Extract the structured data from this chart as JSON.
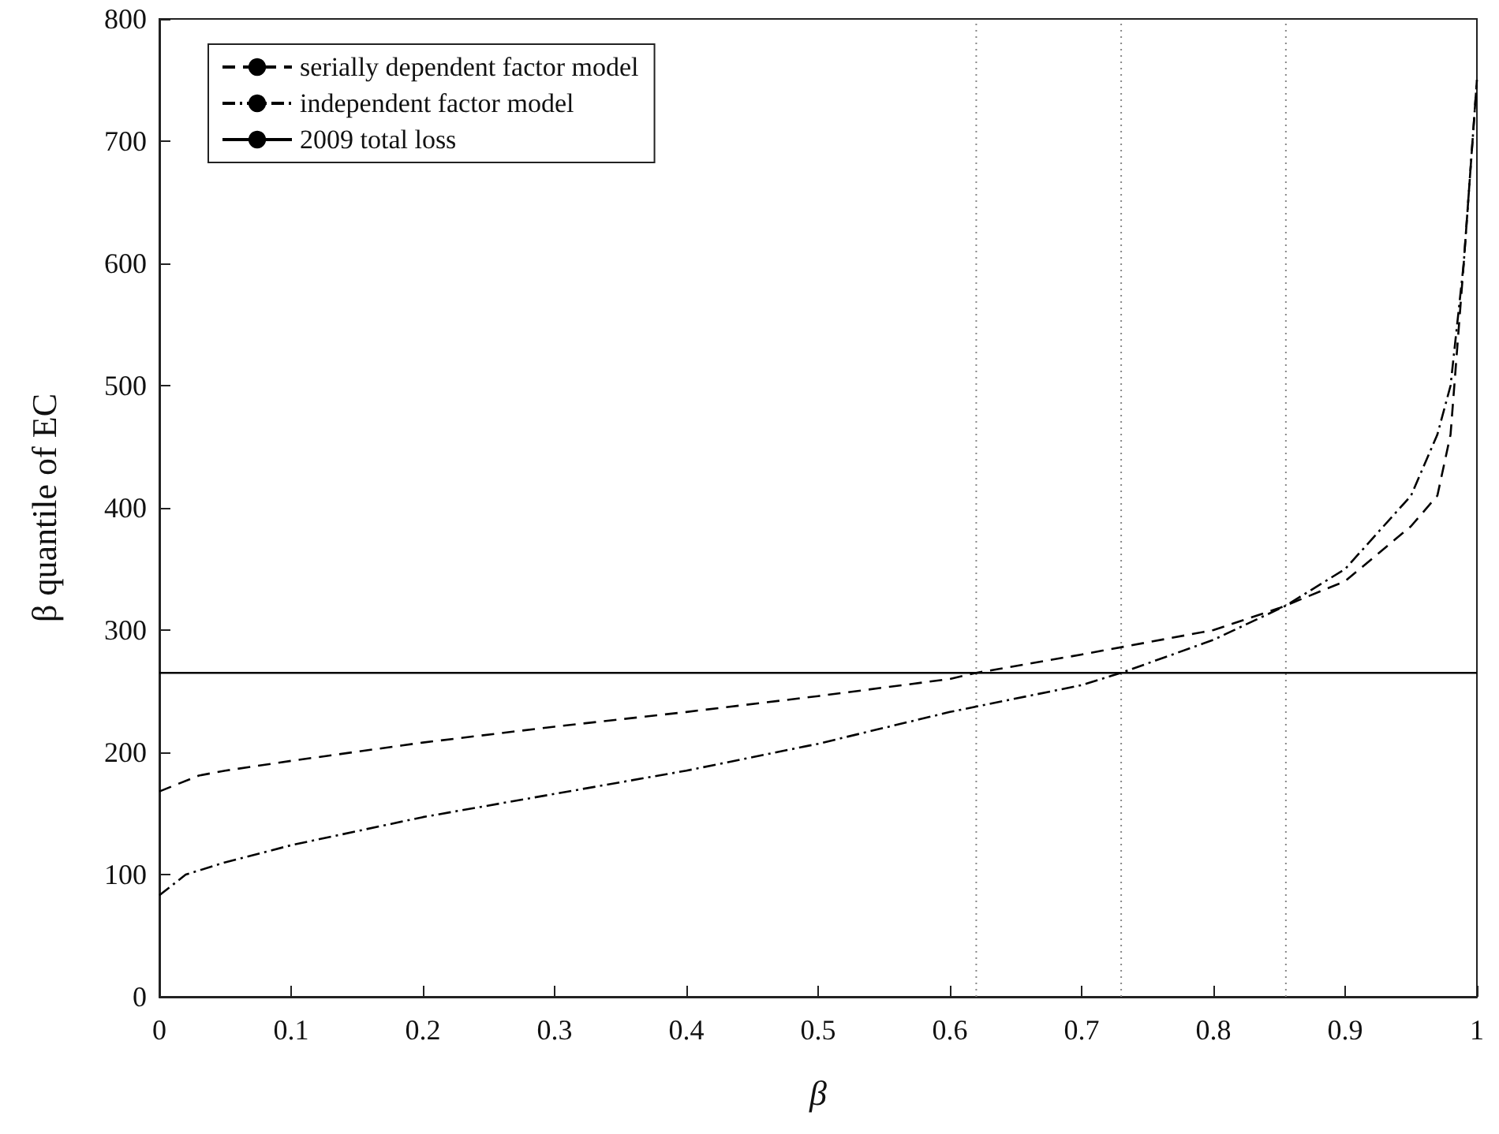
{
  "chart_data": {
    "type": "line",
    "xlabel": "β",
    "ylabel": "β quantile of EC",
    "xlim": [
      0,
      1
    ],
    "ylim": [
      0,
      800
    ],
    "xticks": [
      0,
      0.1,
      0.2,
      0.3,
      0.4,
      0.5,
      0.6,
      0.7,
      0.8,
      0.9,
      1
    ],
    "yticks": [
      0,
      100,
      200,
      300,
      400,
      500,
      600,
      700,
      800
    ],
    "series": [
      {
        "name": "serially dependent factor model",
        "color": "#000000",
        "line_style": "dashed",
        "x": [
          0,
          0.03,
          0.05,
          0.1,
          0.2,
          0.3,
          0.4,
          0.5,
          0.6,
          0.62,
          0.7,
          0.8,
          0.85,
          0.9,
          0.95,
          0.97,
          0.98,
          0.99,
          1
        ],
        "values": [
          168,
          181,
          185,
          193,
          208,
          221,
          233,
          246,
          260,
          265,
          280,
          300,
          318,
          340,
          385,
          410,
          460,
          600,
          750
        ]
      },
      {
        "name": "independent factor model",
        "color": "#000000",
        "line_style": "dashdot",
        "x": [
          0,
          0.02,
          0.05,
          0.1,
          0.2,
          0.3,
          0.4,
          0.5,
          0.6,
          0.7,
          0.73,
          0.8,
          0.855,
          0.9,
          0.95,
          0.97,
          0.98,
          0.99,
          1
        ],
        "values": [
          83,
          100,
          110,
          124,
          147,
          166,
          185,
          207,
          233,
          255,
          265,
          292,
          320,
          350,
          410,
          460,
          500,
          600,
          750
        ]
      },
      {
        "name": "2009 total loss",
        "color": "#000000",
        "line_style": "solid",
        "x": [
          0,
          1
        ],
        "values": [
          265,
          265
        ]
      }
    ],
    "ref_lines": [
      {
        "axis": "x",
        "value": 0.62,
        "color": "#888888",
        "line_style": "dotted"
      },
      {
        "axis": "x",
        "value": 0.73,
        "color": "#888888",
        "line_style": "dotted"
      },
      {
        "axis": "x",
        "value": 0.855,
        "color": "#888888",
        "line_style": "dotted"
      }
    ],
    "legend": "top left",
    "grid": false,
    "marker": "none"
  }
}
